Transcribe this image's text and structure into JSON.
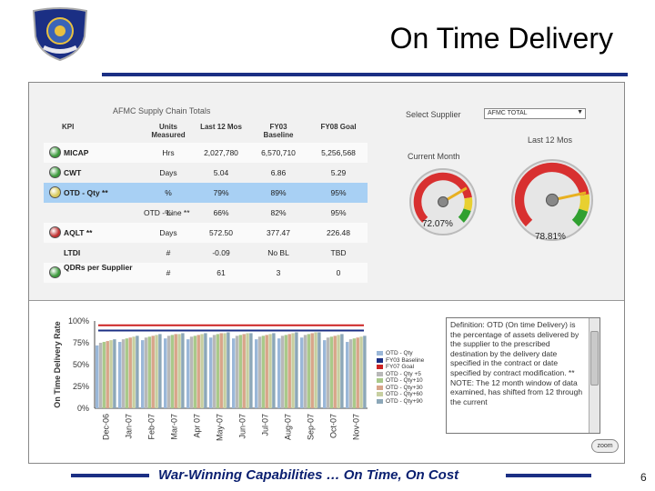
{
  "slide": {
    "title": "On Time Delivery",
    "footer": "War-Winning Capabilities … On Time, On Cost",
    "page_number": "6",
    "colors": {
      "accent": "#1b2f84",
      "footer_text": "#0a1f70"
    }
  },
  "logo": {
    "icon": "afmc-shield-icon",
    "text": "AIR FORCE MATERIEL COMMAND"
  },
  "kpi_table": {
    "title": "AFMC Supply Chain Totals",
    "headers": [
      "KPI",
      "Units Measured",
      "Last 12 Mos",
      "FY03 Baseline",
      "FY08 Goal"
    ],
    "rows": [
      {
        "name": "MICAP",
        "status": "green",
        "units": "Hrs",
        "last12": "2,027,780",
        "baseline": "6,570,710",
        "goal": "5,256,568"
      },
      {
        "name": "CWT",
        "status": "green",
        "units": "Days",
        "last12": "5.04",
        "baseline": "6.86",
        "goal": "5.29"
      },
      {
        "name": "OTD - Qty **",
        "status": "yellow",
        "units": "%",
        "last12": "79%",
        "baseline": "89%",
        "goal": "95%",
        "highlighted": true
      },
      {
        "name": "OTD - Line **",
        "status": "none",
        "units": "%",
        "last12": "66%",
        "baseline": "82%",
        "goal": "95%"
      },
      {
        "name": "AQLT **",
        "status": "red",
        "units": "Days",
        "last12": "572.50",
        "baseline": "377.47",
        "goal": "226.48"
      },
      {
        "name": "LTDI",
        "status": "none",
        "units": "#",
        "last12": "-0.09",
        "baseline": "No BL",
        "goal": "TBD"
      },
      {
        "name": "QDRs per Supplier",
        "status": "green",
        "units": "#",
        "last12": "61",
        "baseline": "3",
        "goal": "0"
      }
    ]
  },
  "supplier_select": {
    "label": "Select Supplier",
    "value": "AFMC TOTAL"
  },
  "gauges": {
    "current_label": "Current Month",
    "current_value": "72.07%",
    "current_fraction": 0.7207,
    "last12_label": "Last 12 Mos",
    "last12_value": "78.81%",
    "last12_fraction": 0.7881
  },
  "definition": {
    "text": "Definition: OTD (On time Delivery) is the percentage of assets delivered by the supplier to the prescribed destination by the delivery date specified in the contract or date specified by contract modification. ** NOTE: The 12 month window of data examined, has shifted from 12 through the current"
  },
  "zoom_label": "zoom",
  "chart_data": {
    "type": "bar",
    "ylabel": "On Time Delivery Rate",
    "yticks": [
      "100%",
      "75%",
      "50%",
      "25%",
      "0%"
    ],
    "ylim": [
      0,
      100
    ],
    "categories": [
      "Dec-06",
      "Jan-07",
      "Feb-07",
      "Mar-07",
      "Apr 07",
      "May-07",
      "Jun-07",
      "Jul-07",
      "Aug-07",
      "Sep-07",
      "Oct-07",
      "Nov-07"
    ],
    "series": [
      {
        "name": "OTD - Qty",
        "color": "#9ab7d8",
        "values": [
          72,
          76,
          78,
          80,
          79,
          81,
          80,
          79,
          80,
          81,
          78,
          76
        ]
      },
      {
        "name": "OTD - Qty+5",
        "color": "#b8b8b8",
        "values": [
          75,
          79,
          81,
          83,
          82,
          84,
          83,
          82,
          83,
          84,
          81,
          79
        ]
      },
      {
        "name": "OTD - Qty+10",
        "color": "#a9c98a",
        "values": [
          76,
          80,
          82,
          84,
          83,
          85,
          84,
          83,
          84,
          85,
          82,
          80
        ]
      },
      {
        "name": "OTD - Qty+30",
        "color": "#d8a58a",
        "values": [
          77,
          81,
          83,
          85,
          84,
          86,
          85,
          84,
          85,
          86,
          83,
          81
        ]
      },
      {
        "name": "OTD - Qty+60",
        "color": "#c7cfa0",
        "values": [
          78,
          82,
          84,
          85,
          85,
          86,
          86,
          85,
          86,
          87,
          84,
          82
        ]
      },
      {
        "name": "OTD - Qty+90",
        "color": "#8ca7b8",
        "values": [
          79,
          83,
          85,
          86,
          86,
          87,
          86,
          86,
          87,
          87,
          85,
          83
        ]
      }
    ],
    "reference_lines": [
      {
        "name": "FY03 Baseline",
        "color": "#1b2f84",
        "value": 89
      },
      {
        "name": "FY07 Goal",
        "color": "#cc2222",
        "value": 95
      }
    ],
    "legend": [
      "OTD - Qty",
      "FY03 Baseline",
      "FY07 Goal",
      "OTD - Qty +5",
      "OTD - Qty+10",
      "OTD - Qty+30",
      "OTD - Qty+60",
      "OTD - Qty+90"
    ],
    "legend_colors": [
      "#9ab7d8",
      "#1b2f84",
      "#cc2222",
      "#b8b8b8",
      "#a9c98a",
      "#d8a58a",
      "#c7cfa0",
      "#8ca7b8"
    ],
    "legend_position": "right",
    "grid": false
  }
}
